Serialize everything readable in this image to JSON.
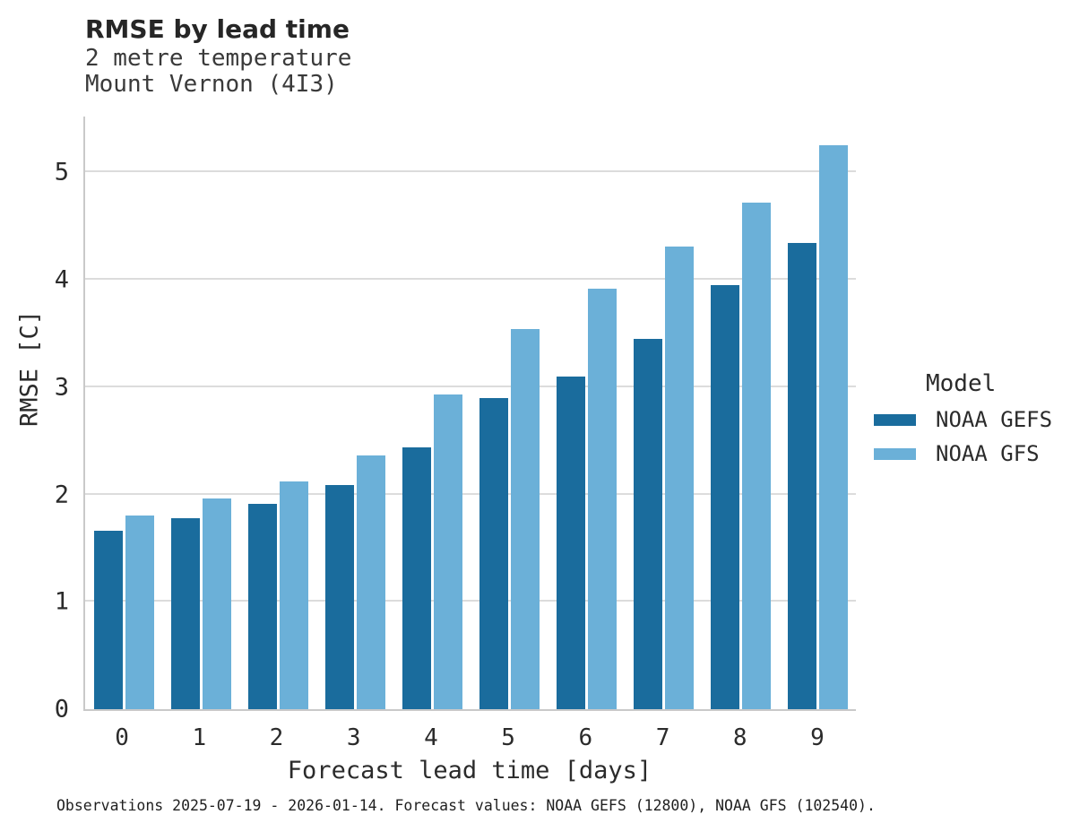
{
  "header": {
    "title": "RMSE by lead time",
    "subtitle_line1": "2 metre temperature",
    "subtitle_line2": "Mount Vernon (4I3)"
  },
  "chart_data": {
    "type": "bar",
    "title": "RMSE by lead time",
    "subtitle": [
      "2 metre temperature",
      "Mount Vernon (4I3)"
    ],
    "categories": [
      "0",
      "1",
      "2",
      "3",
      "4",
      "5",
      "6",
      "7",
      "8",
      "9"
    ],
    "series": [
      {
        "name": "NOAA GEFS",
        "color": "#1a6c9d",
        "values": [
          1.66,
          1.78,
          1.91,
          2.09,
          2.44,
          2.9,
          3.1,
          3.45,
          3.95,
          4.34
        ]
      },
      {
        "name": "NOAA GFS",
        "color": "#6bb0d8",
        "values": [
          1.8,
          1.96,
          2.12,
          2.36,
          2.93,
          3.54,
          3.92,
          4.31,
          4.72,
          5.25
        ]
      }
    ],
    "xlabel": "Forecast lead time [days]",
    "ylabel": "RMSE [C]",
    "ylim": [
      0,
      5.52
    ],
    "yticks": [
      0,
      1,
      2,
      3,
      4,
      5
    ],
    "grid": true,
    "legend_title": "Model",
    "legend_position": "right"
  },
  "legend": {
    "title": "Model",
    "items": [
      {
        "label": "NOAA GEFS",
        "color": "#1a6c9d"
      },
      {
        "label": "NOAA GFS",
        "color": "#6bb0d8"
      }
    ]
  },
  "footer": {
    "note": "Observations 2025-07-19 - 2026-01-14. Forecast values: NOAA GEFS (12800), NOAA GFS (102540)."
  }
}
